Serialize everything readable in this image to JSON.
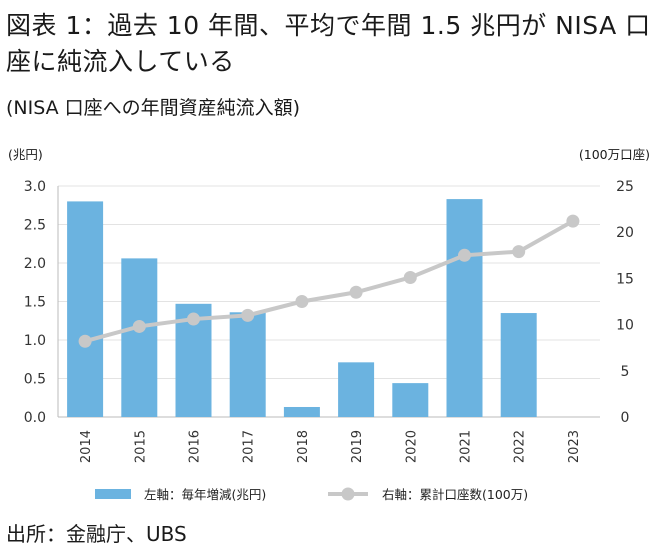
{
  "header": {
    "title": "図表 1：過去 10 年間、平均で年間 1.5 兆円が NISA 口座に純流入している",
    "subtitle": "(NISA 口座への年間資産純流入額)"
  },
  "axes": {
    "left_unit": "(兆円)",
    "right_unit": "(100万口座)"
  },
  "chart_data": {
    "type": "bar+line",
    "categories": [
      "2014",
      "2015",
      "2016",
      "2017",
      "2018",
      "2019",
      "2020",
      "2021",
      "2022",
      "2023"
    ],
    "series": [
      {
        "name": "左軸：毎年増減(兆円)",
        "type": "bar",
        "axis": "left",
        "color": "#6bb3e0",
        "values": [
          2.8,
          2.06,
          1.47,
          1.36,
          0.13,
          0.71,
          0.44,
          2.83,
          1.35,
          null
        ]
      },
      {
        "name": "右軸：累計口座数(100万)",
        "type": "line",
        "axis": "right",
        "color": "#c8c8c8",
        "values": [
          8.2,
          9.8,
          10.6,
          11.0,
          12.5,
          13.5,
          15.1,
          17.5,
          17.9,
          21.2
        ]
      }
    ],
    "y_left": {
      "lim": [
        0,
        3.0
      ],
      "ticks": [
        "0.0",
        "0.5",
        "1.0",
        "1.5",
        "2.0",
        "2.5",
        "3.0"
      ]
    },
    "y_right": {
      "lim": [
        0,
        25
      ],
      "ticks": [
        "0",
        "5",
        "10",
        "15",
        "20",
        "25"
      ]
    },
    "grid": true,
    "legend_position": "bottom"
  },
  "footer": {
    "source": "出所：金融庁、UBS"
  }
}
